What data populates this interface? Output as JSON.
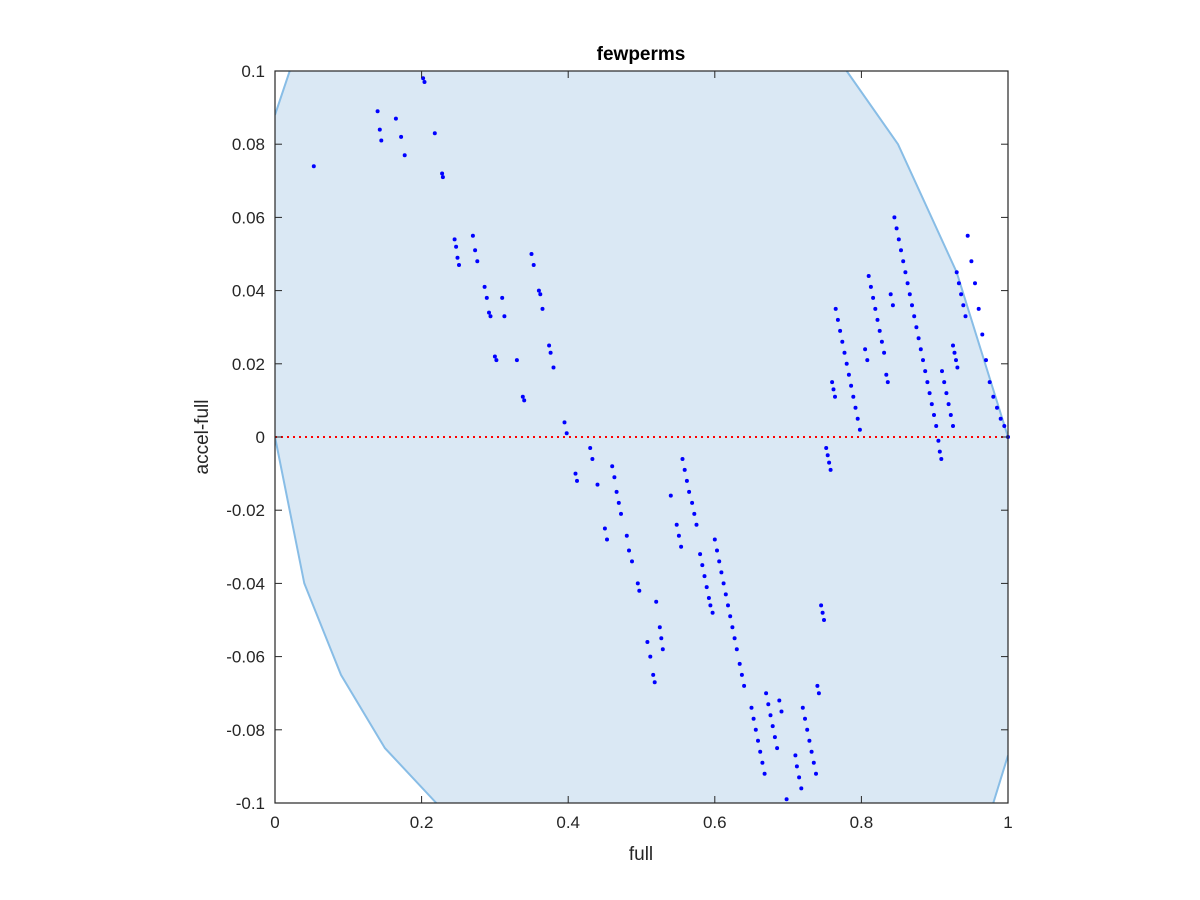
{
  "chart_data": {
    "type": "scatter",
    "title": "fewperms",
    "xlabel": "full",
    "ylabel": "accel-full",
    "xlim": [
      0,
      1
    ],
    "ylim": [
      -0.1,
      0.1
    ],
    "xticks": [
      "0",
      "0.2",
      "0.4",
      "0.6",
      "0.8",
      "1"
    ],
    "xtick_values": [
      0,
      0.2,
      0.4,
      0.6,
      0.8,
      1
    ],
    "yticks": [
      "0.1",
      "0.08",
      "0.06",
      "0.04",
      "0.02",
      "0",
      "-0.02",
      "-0.04",
      "-0.06",
      "-0.08",
      "-0.1"
    ],
    "ytick_values": [
      0.1,
      0.08,
      0.06,
      0.04,
      0.02,
      0,
      -0.02,
      -0.04,
      -0.06,
      -0.08,
      -0.1
    ],
    "grid": false,
    "reference_line": {
      "y": 0,
      "style": "dotted",
      "color": "#ff0000"
    },
    "region": {
      "fill": "#dae8f4",
      "stroke": "#88bde6",
      "left_boundary": [
        [
          0,
          0
        ],
        [
          0.04,
          -0.04
        ],
        [
          0.09,
          -0.065
        ],
        [
          0.15,
          -0.085
        ],
        [
          0.22,
          -0.1
        ]
      ],
      "right_boundary": [
        [
          0.78,
          0.1
        ],
        [
          0.85,
          0.08
        ],
        [
          0.93,
          0.045
        ],
        [
          1,
          0
        ]
      ],
      "top_left_corner": [
        [
          0,
          0.088
        ],
        [
          0.02,
          0.1
        ]
      ],
      "bottom_right_corner": [
        [
          0.98,
          -0.1
        ],
        [
          1,
          -0.087
        ]
      ]
    },
    "point_color": "#0000ff",
    "series": [
      {
        "points": [
          [
            0.053,
            0.074
          ],
          [
            0.14,
            0.089
          ],
          [
            0.143,
            0.084
          ],
          [
            0.145,
            0.081
          ],
          [
            0.165,
            0.087
          ],
          [
            0.172,
            0.082
          ],
          [
            0.177,
            0.077
          ],
          [
            0.202,
            0.098
          ],
          [
            0.204,
            0.097
          ],
          [
            0.218,
            0.083
          ],
          [
            0.228,
            0.072
          ],
          [
            0.229,
            0.071
          ],
          [
            0.245,
            0.054
          ],
          [
            0.247,
            0.052
          ],
          [
            0.249,
            0.049
          ],
          [
            0.251,
            0.047
          ],
          [
            0.27,
            0.055
          ],
          [
            0.273,
            0.051
          ],
          [
            0.276,
            0.048
          ],
          [
            0.286,
            0.041
          ],
          [
            0.289,
            0.038
          ],
          [
            0.292,
            0.034
          ],
          [
            0.294,
            0.033
          ],
          [
            0.3,
            0.022
          ],
          [
            0.302,
            0.021
          ],
          [
            0.31,
            0.038
          ],
          [
            0.313,
            0.033
          ],
          [
            0.33,
            0.021
          ],
          [
            0.338,
            0.011
          ],
          [
            0.34,
            0.01
          ],
          [
            0.35,
            0.05
          ],
          [
            0.353,
            0.047
          ],
          [
            0.36,
            0.04
          ],
          [
            0.362,
            0.039
          ],
          [
            0.365,
            0.035
          ],
          [
            0.374,
            0.025
          ],
          [
            0.376,
            0.023
          ],
          [
            0.38,
            0.019
          ],
          [
            0.395,
            0.004
          ],
          [
            0.398,
            0.001
          ],
          [
            0.41,
            -0.01
          ],
          [
            0.412,
            -0.012
          ],
          [
            0.43,
            -0.003
          ],
          [
            0.433,
            -0.006
          ],
          [
            0.44,
            -0.013
          ],
          [
            0.45,
            -0.025
          ],
          [
            0.453,
            -0.028
          ],
          [
            0.46,
            -0.008
          ],
          [
            0.463,
            -0.011
          ],
          [
            0.466,
            -0.015
          ],
          [
            0.469,
            -0.018
          ],
          [
            0.472,
            -0.021
          ],
          [
            0.48,
            -0.027
          ],
          [
            0.483,
            -0.031
          ],
          [
            0.487,
            -0.034
          ],
          [
            0.495,
            -0.04
          ],
          [
            0.497,
            -0.042
          ],
          [
            0.508,
            -0.056
          ],
          [
            0.512,
            -0.06
          ],
          [
            0.516,
            -0.065
          ],
          [
            0.518,
            -0.067
          ],
          [
            0.52,
            -0.045
          ],
          [
            0.525,
            -0.052
          ],
          [
            0.527,
            -0.055
          ],
          [
            0.529,
            -0.058
          ],
          [
            0.54,
            -0.016
          ],
          [
            0.548,
            -0.024
          ],
          [
            0.551,
            -0.027
          ],
          [
            0.554,
            -0.03
          ],
          [
            0.556,
            -0.006
          ],
          [
            0.559,
            -0.009
          ],
          [
            0.562,
            -0.012
          ],
          [
            0.565,
            -0.015
          ],
          [
            0.569,
            -0.018
          ],
          [
            0.572,
            -0.021
          ],
          [
            0.575,
            -0.024
          ],
          [
            0.58,
            -0.032
          ],
          [
            0.583,
            -0.035
          ],
          [
            0.586,
            -0.038
          ],
          [
            0.589,
            -0.041
          ],
          [
            0.592,
            -0.044
          ],
          [
            0.594,
            -0.046
          ],
          [
            0.597,
            -0.048
          ],
          [
            0.6,
            -0.028
          ],
          [
            0.603,
            -0.031
          ],
          [
            0.606,
            -0.034
          ],
          [
            0.609,
            -0.037
          ],
          [
            0.612,
            -0.04
          ],
          [
            0.615,
            -0.043
          ],
          [
            0.618,
            -0.046
          ],
          [
            0.621,
            -0.049
          ],
          [
            0.624,
            -0.052
          ],
          [
            0.627,
            -0.055
          ],
          [
            0.63,
            -0.058
          ],
          [
            0.634,
            -0.062
          ],
          [
            0.637,
            -0.065
          ],
          [
            0.64,
            -0.068
          ],
          [
            0.65,
            -0.074
          ],
          [
            0.653,
            -0.077
          ],
          [
            0.656,
            -0.08
          ],
          [
            0.659,
            -0.083
          ],
          [
            0.662,
            -0.086
          ],
          [
            0.665,
            -0.089
          ],
          [
            0.668,
            -0.092
          ],
          [
            0.67,
            -0.07
          ],
          [
            0.673,
            -0.073
          ],
          [
            0.676,
            -0.076
          ],
          [
            0.679,
            -0.079
          ],
          [
            0.682,
            -0.082
          ],
          [
            0.685,
            -0.085
          ],
          [
            0.688,
            -0.072
          ],
          [
            0.691,
            -0.075
          ],
          [
            0.698,
            -0.099
          ],
          [
            0.71,
            -0.087
          ],
          [
            0.712,
            -0.09
          ],
          [
            0.715,
            -0.093
          ],
          [
            0.718,
            -0.096
          ],
          [
            0.72,
            -0.074
          ],
          [
            0.723,
            -0.077
          ],
          [
            0.726,
            -0.08
          ],
          [
            0.729,
            -0.083
          ],
          [
            0.732,
            -0.086
          ],
          [
            0.735,
            -0.089
          ],
          [
            0.738,
            -0.092
          ],
          [
            0.74,
            -0.068
          ],
          [
            0.742,
            -0.07
          ],
          [
            0.745,
            -0.046
          ],
          [
            0.747,
            -0.048
          ],
          [
            0.749,
            -0.05
          ],
          [
            0.752,
            -0.003
          ],
          [
            0.754,
            -0.005
          ],
          [
            0.756,
            -0.007
          ],
          [
            0.758,
            -0.009
          ],
          [
            0.76,
            0.015
          ],
          [
            0.762,
            0.013
          ],
          [
            0.764,
            0.011
          ],
          [
            0.765,
            0.035
          ],
          [
            0.768,
            0.032
          ],
          [
            0.771,
            0.029
          ],
          [
            0.774,
            0.026
          ],
          [
            0.777,
            0.023
          ],
          [
            0.78,
            0.02
          ],
          [
            0.783,
            0.017
          ],
          [
            0.786,
            0.014
          ],
          [
            0.789,
            0.011
          ],
          [
            0.792,
            0.008
          ],
          [
            0.795,
            0.005
          ],
          [
            0.798,
            0.002
          ],
          [
            0.805,
            0.024
          ],
          [
            0.808,
            0.021
          ],
          [
            0.81,
            0.044
          ],
          [
            0.813,
            0.041
          ],
          [
            0.816,
            0.038
          ],
          [
            0.819,
            0.035
          ],
          [
            0.822,
            0.032
          ],
          [
            0.825,
            0.029
          ],
          [
            0.828,
            0.026
          ],
          [
            0.831,
            0.023
          ],
          [
            0.834,
            0.017
          ],
          [
            0.836,
            0.015
          ],
          [
            0.84,
            0.039
          ],
          [
            0.843,
            0.036
          ],
          [
            0.845,
            0.06
          ],
          [
            0.848,
            0.057
          ],
          [
            0.851,
            0.054
          ],
          [
            0.854,
            0.051
          ],
          [
            0.857,
            0.048
          ],
          [
            0.86,
            0.045
          ],
          [
            0.863,
            0.042
          ],
          [
            0.866,
            0.039
          ],
          [
            0.869,
            0.036
          ],
          [
            0.872,
            0.033
          ],
          [
            0.875,
            0.03
          ],
          [
            0.878,
            0.027
          ],
          [
            0.881,
            0.024
          ],
          [
            0.884,
            0.021
          ],
          [
            0.887,
            0.018
          ],
          [
            0.89,
            0.015
          ],
          [
            0.893,
            0.012
          ],
          [
            0.896,
            0.009
          ],
          [
            0.899,
            0.006
          ],
          [
            0.902,
            0.003
          ],
          [
            0.905,
            -0.001
          ],
          [
            0.907,
            -0.004
          ],
          [
            0.909,
            -0.006
          ],
          [
            0.91,
            0.018
          ],
          [
            0.913,
            0.015
          ],
          [
            0.916,
            0.012
          ],
          [
            0.919,
            0.009
          ],
          [
            0.922,
            0.006
          ],
          [
            0.925,
            0.003
          ],
          [
            0.925,
            0.025
          ],
          [
            0.927,
            0.023
          ],
          [
            0.929,
            0.021
          ],
          [
            0.931,
            0.019
          ],
          [
            0.93,
            0.045
          ],
          [
            0.933,
            0.042
          ],
          [
            0.936,
            0.039
          ],
          [
            0.939,
            0.036
          ],
          [
            0.942,
            0.033
          ],
          [
            0.945,
            0.055
          ],
          [
            0.95,
            0.048
          ],
          [
            0.955,
            0.042
          ],
          [
            0.96,
            0.035
          ],
          [
            0.965,
            0.028
          ],
          [
            0.97,
            0.021
          ],
          [
            0.975,
            0.015
          ],
          [
            0.98,
            0.011
          ],
          [
            0.985,
            0.008
          ],
          [
            0.99,
            0.005
          ],
          [
            0.995,
            0.003
          ],
          [
            1.0,
            0.0
          ]
        ]
      }
    ]
  }
}
